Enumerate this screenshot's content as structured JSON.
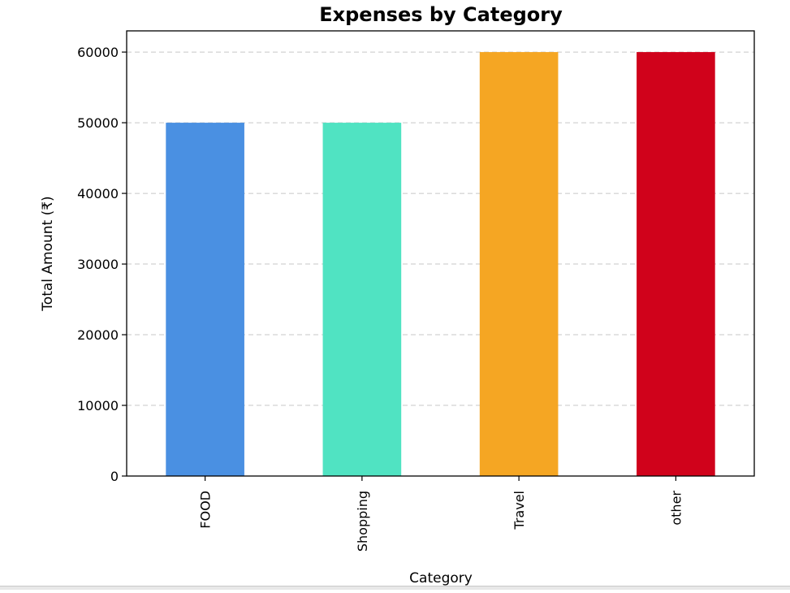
{
  "chart_data": {
    "type": "bar",
    "title": "Expenses by Category",
    "xlabel": "Category",
    "ylabel": "Total Amount (₹)",
    "categories": [
      "FOOD",
      "Shopping",
      "Travel",
      "other"
    ],
    "values": [
      50000,
      50000,
      60000,
      60000
    ],
    "colors": [
      "#4a90e2",
      "#50e3c2",
      "#f5a623",
      "#d0021b"
    ],
    "ylim": [
      0,
      63000
    ],
    "yticks": [
      0,
      10000,
      20000,
      30000,
      40000,
      50000,
      60000
    ],
    "ytick_labels": [
      "0",
      "10000",
      "20000",
      "30000",
      "40000",
      "50000",
      "60000"
    ],
    "grid": "y-dashed",
    "legend": "none"
  }
}
